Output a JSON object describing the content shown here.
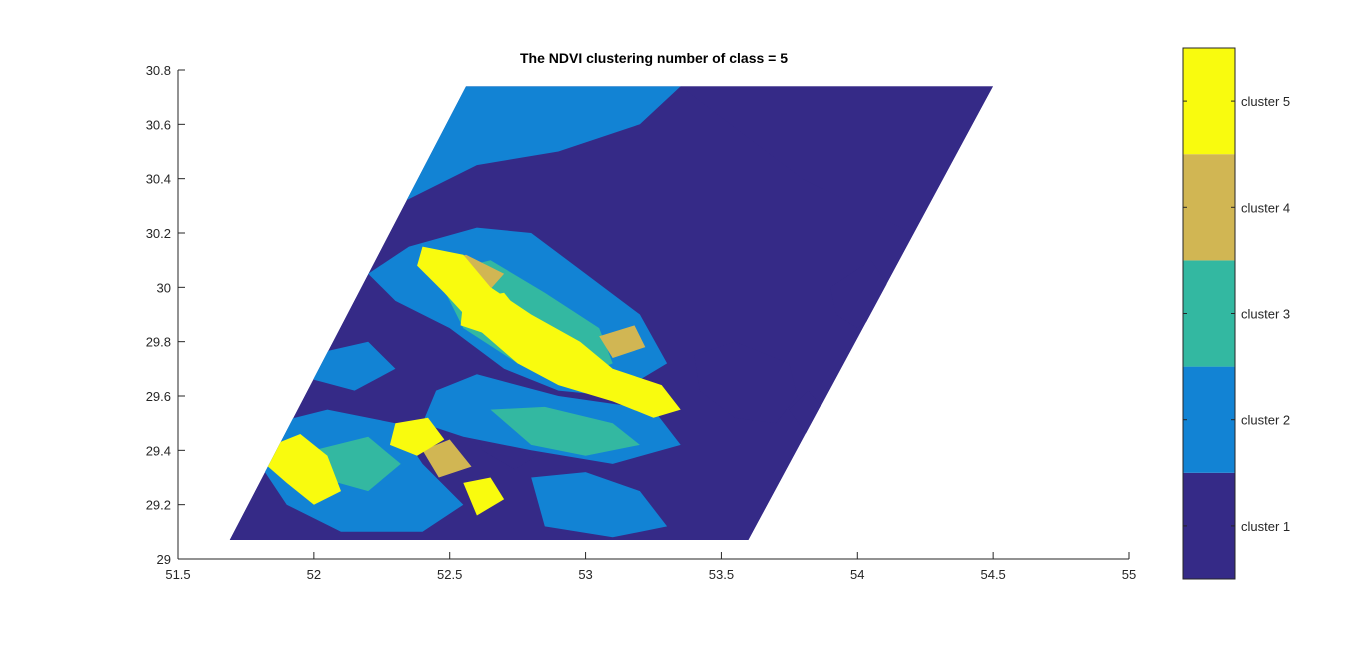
{
  "chart_data": {
    "type": "heatmap",
    "title": "The NDVI clustering number of class = 5",
    "xlabel": "",
    "ylabel": "",
    "xlim": [
      51.5,
      55
    ],
    "ylim": [
      29,
      30.8
    ],
    "x_ticks": [
      "51.5",
      "52",
      "52.5",
      "53",
      "53.5",
      "54",
      "54.5",
      "55"
    ],
    "y_ticks": [
      "29",
      "29.2",
      "29.4",
      "29.6",
      "29.8",
      "30",
      "30.2",
      "30.4",
      "30.6",
      "30.8"
    ],
    "grid": false,
    "map_extent": {
      "corners": [
        [
          51.69,
          29.07
        ],
        [
          53.6,
          29.07
        ],
        [
          54.5,
          30.74
        ],
        [
          52.56,
          30.74
        ]
      ]
    },
    "classes": [
      {
        "label": "cluster 1",
        "color": "#352A87"
      },
      {
        "label": "cluster 2",
        "color": "#1283D4"
      },
      {
        "label": "cluster 3",
        "color": "#33B8A1"
      },
      {
        "label": "cluster 4",
        "color": "#D1B653"
      },
      {
        "label": "cluster 5",
        "color": "#F9FB0E"
      }
    ],
    "regions": [
      {
        "cls": 2,
        "pts": [
          [
            52.56,
            30.74
          ],
          [
            53.35,
            30.74
          ],
          [
            53.2,
            30.6
          ],
          [
            52.9,
            30.5
          ],
          [
            52.6,
            30.45
          ],
          [
            52.3,
            30.3
          ],
          [
            52.25,
            30.2
          ],
          [
            52.35,
            30.45
          ]
        ]
      },
      {
        "cls": 1,
        "pts": [
          [
            53.35,
            30.74
          ],
          [
            54.5,
            30.74
          ],
          [
            54.2,
            30.2
          ],
          [
            53.8,
            30.4
          ],
          [
            53.6,
            30.55
          ]
        ]
      },
      {
        "cls": 1,
        "pts": [
          [
            53.9,
            30.0
          ],
          [
            54.05,
            30.1
          ],
          [
            54.15,
            29.95
          ],
          [
            54.0,
            29.85
          ],
          [
            53.92,
            29.9
          ]
        ]
      },
      {
        "cls": 1,
        "pts": [
          [
            53.4,
            29.75
          ],
          [
            53.55,
            29.8
          ],
          [
            53.75,
            29.72
          ],
          [
            53.78,
            29.6
          ],
          [
            53.7,
            29.5
          ],
          [
            53.55,
            29.52
          ],
          [
            53.42,
            29.62
          ]
        ]
      },
      {
        "cls": 1,
        "pts": [
          [
            53.75,
            29.55
          ],
          [
            53.82,
            29.62
          ],
          [
            53.88,
            29.55
          ],
          [
            53.82,
            29.45
          ]
        ]
      },
      {
        "cls": 1,
        "pts": [
          [
            52.6,
            29.5
          ],
          [
            52.75,
            29.48
          ],
          [
            52.82,
            29.38
          ],
          [
            52.74,
            29.33
          ],
          [
            52.62,
            29.4
          ]
        ]
      },
      {
        "cls": 1,
        "pts": [
          [
            52.1,
            30.2
          ],
          [
            52.2,
            30.24
          ],
          [
            52.25,
            30.16
          ],
          [
            52.14,
            30.12
          ]
        ]
      },
      {
        "cls": 2,
        "pts": [
          [
            52.35,
            30.15
          ],
          [
            52.6,
            30.22
          ],
          [
            52.8,
            30.2
          ],
          [
            53.0,
            30.05
          ],
          [
            53.2,
            29.9
          ],
          [
            53.3,
            29.72
          ],
          [
            53.1,
            29.6
          ],
          [
            52.9,
            29.62
          ],
          [
            52.7,
            29.7
          ],
          [
            52.5,
            29.85
          ],
          [
            52.3,
            29.95
          ],
          [
            52.2,
            30.05
          ]
        ]
      },
      {
        "cls": 2,
        "pts": [
          [
            52.45,
            29.62
          ],
          [
            52.6,
            29.68
          ],
          [
            52.9,
            29.6
          ],
          [
            53.25,
            29.55
          ],
          [
            53.35,
            29.42
          ],
          [
            53.1,
            29.35
          ],
          [
            52.8,
            29.4
          ],
          [
            52.55,
            29.45
          ],
          [
            52.4,
            29.5
          ]
        ]
      },
      {
        "cls": 2,
        "pts": [
          [
            51.85,
            29.5
          ],
          [
            52.05,
            29.55
          ],
          [
            52.3,
            29.5
          ],
          [
            52.4,
            29.35
          ],
          [
            52.55,
            29.2
          ],
          [
            52.4,
            29.1
          ],
          [
            52.1,
            29.1
          ],
          [
            51.9,
            29.2
          ],
          [
            51.8,
            29.35
          ]
        ]
      },
      {
        "cls": 2,
        "pts": [
          [
            52.8,
            29.3
          ],
          [
            53.0,
            29.32
          ],
          [
            53.2,
            29.25
          ],
          [
            53.3,
            29.12
          ],
          [
            53.1,
            29.08
          ],
          [
            52.85,
            29.12
          ]
        ]
      },
      {
        "cls": 2,
        "pts": [
          [
            51.98,
            29.75
          ],
          [
            52.2,
            29.8
          ],
          [
            52.3,
            29.7
          ],
          [
            52.15,
            29.62
          ],
          [
            52.0,
            29.66
          ]
        ]
      },
      {
        "cls": 3,
        "pts": [
          [
            52.45,
            30.05
          ],
          [
            52.65,
            30.1
          ],
          [
            52.85,
            29.98
          ],
          [
            53.05,
            29.85
          ],
          [
            53.1,
            29.72
          ],
          [
            52.95,
            29.66
          ],
          [
            52.75,
            29.72
          ],
          [
            52.55,
            29.85
          ]
        ]
      },
      {
        "cls": 3,
        "pts": [
          [
            52.65,
            29.55
          ],
          [
            52.85,
            29.56
          ],
          [
            53.1,
            29.5
          ],
          [
            53.2,
            29.42
          ],
          [
            53.0,
            29.38
          ],
          [
            52.8,
            29.42
          ]
        ]
      },
      {
        "cls": 3,
        "pts": [
          [
            52.0,
            29.4
          ],
          [
            52.2,
            29.45
          ],
          [
            52.32,
            29.35
          ],
          [
            52.2,
            29.25
          ],
          [
            52.02,
            29.3
          ]
        ]
      },
      {
        "cls": 4,
        "pts": [
          [
            52.42,
            30.08
          ],
          [
            52.56,
            30.12
          ],
          [
            52.7,
            30.05
          ],
          [
            52.62,
            29.96
          ],
          [
            52.46,
            30.0
          ]
        ]
      },
      {
        "cls": 4,
        "pts": [
          [
            51.9,
            29.35
          ],
          [
            52.0,
            29.4
          ],
          [
            52.08,
            29.3
          ],
          [
            51.98,
            29.24
          ]
        ]
      },
      {
        "cls": 4,
        "pts": [
          [
            52.4,
            29.4
          ],
          [
            52.5,
            29.44
          ],
          [
            52.58,
            29.34
          ],
          [
            52.46,
            29.3
          ]
        ]
      },
      {
        "cls": 4,
        "pts": [
          [
            53.05,
            29.82
          ],
          [
            53.18,
            29.86
          ],
          [
            53.22,
            29.78
          ],
          [
            53.1,
            29.74
          ]
        ]
      },
      {
        "cls": 5,
        "pts": [
          [
            52.4,
            30.15
          ],
          [
            52.55,
            30.12
          ],
          [
            52.65,
            30.0
          ],
          [
            52.8,
            29.9
          ],
          [
            52.98,
            29.8
          ],
          [
            53.1,
            29.7
          ],
          [
            53.28,
            29.64
          ],
          [
            53.35,
            29.55
          ],
          [
            53.25,
            29.52
          ],
          [
            53.1,
            29.58
          ],
          [
            52.9,
            29.64
          ],
          [
            52.75,
            29.72
          ],
          [
            52.6,
            29.85
          ],
          [
            52.48,
            29.98
          ],
          [
            52.38,
            30.08
          ]
        ]
      },
      {
        "cls": 5,
        "pts": [
          [
            52.55,
            29.95
          ],
          [
            52.7,
            29.98
          ],
          [
            52.78,
            29.88
          ],
          [
            52.66,
            29.82
          ],
          [
            52.54,
            29.86
          ]
        ]
      },
      {
        "cls": 5,
        "pts": [
          [
            51.85,
            29.42
          ],
          [
            51.95,
            29.46
          ],
          [
            52.05,
            29.38
          ],
          [
            52.1,
            29.25
          ],
          [
            52.0,
            29.2
          ],
          [
            51.9,
            29.28
          ],
          [
            51.82,
            29.35
          ]
        ]
      },
      {
        "cls": 5,
        "pts": [
          [
            52.3,
            29.5
          ],
          [
            52.42,
            29.52
          ],
          [
            52.48,
            29.44
          ],
          [
            52.38,
            29.38
          ],
          [
            52.28,
            29.42
          ]
        ]
      },
      {
        "cls": 5,
        "pts": [
          [
            52.55,
            29.28
          ],
          [
            52.65,
            29.3
          ],
          [
            52.7,
            29.22
          ],
          [
            52.6,
            29.16
          ]
        ]
      }
    ]
  }
}
